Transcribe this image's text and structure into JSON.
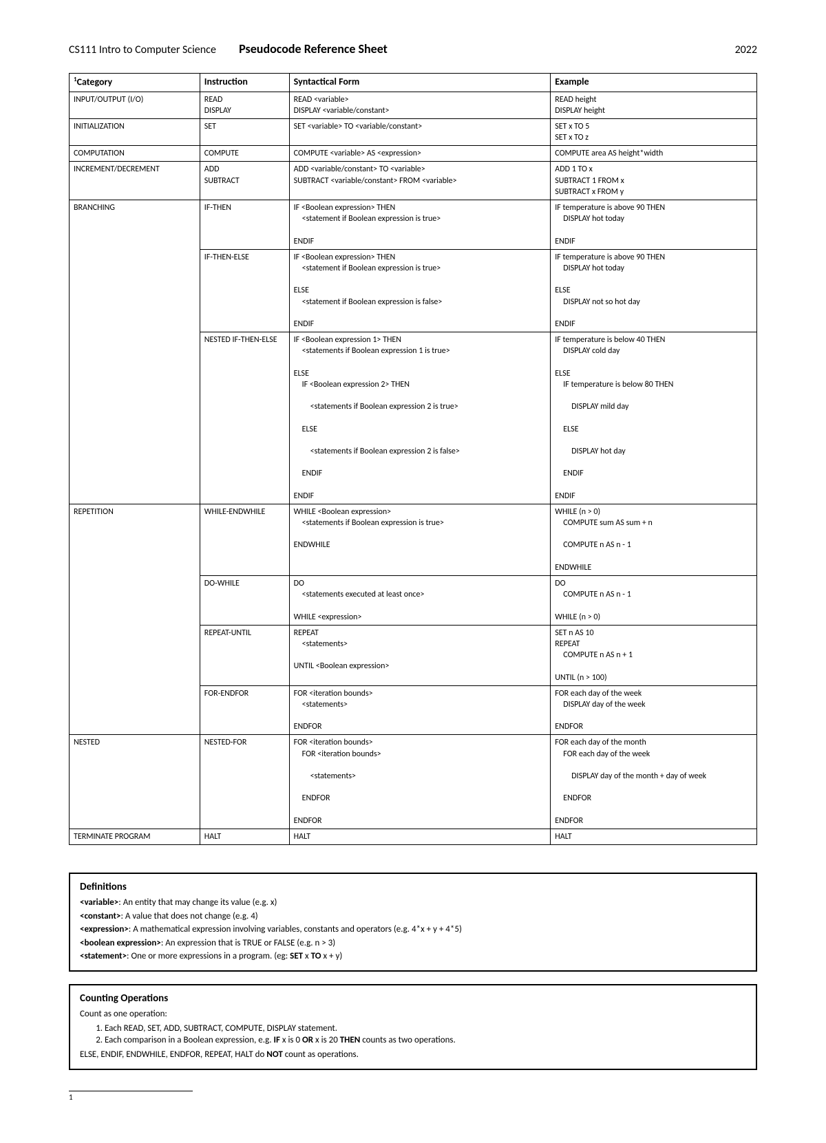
{
  "header": {
    "course": "CS111 Intro to Computer Science",
    "title": "Pseudocode Reference Sheet",
    "year": "2022"
  },
  "table": {
    "columns": [
      "Category",
      "Instruction",
      "Syntactical Form",
      "Example"
    ],
    "footnote_marker": "1",
    "rows": [
      {
        "category": "INPUT/OUTPUT (I/O)",
        "instruction": "READ\nDISPLAY",
        "form": "READ <variable>\nDISPLAY <variable/constant>",
        "example": "READ height\nDISPLAY height"
      },
      {
        "category": "INITIALIZATION",
        "instruction": "SET",
        "form": "SET <variable> TO <variable/constant>",
        "example": "SET x TO 5\nSET x TO z"
      },
      {
        "category": "COMPUTATION",
        "instruction": "COMPUTE",
        "form": "COMPUTE <variable> AS <expression>",
        "example": "COMPUTE area AS height*width"
      },
      {
        "category": "INCREMENT/DECREMENT",
        "instruction": "ADD\nSUBTRACT",
        "form": "ADD <variable/constant> TO <variable>\nSUBTRACT <variable/constant> FROM <variable>",
        "example": "ADD 1 TO x\nSUBTRACT 1 FROM x\nSUBTRACT x FROM y"
      },
      {
        "category": "BRANCHING",
        "category_rowspan": 3,
        "instruction": "IF-THEN",
        "form_lines": [
          {
            "t": "IF <Boolean expression> THEN",
            "i": 0
          },
          {
            "t": "<statement if Boolean expression is true>",
            "i": 1
          },
          {
            "t": "ENDIF",
            "i": 0
          }
        ],
        "example_lines": [
          {
            "t": "IF temperature is above 90 THEN",
            "i": 0
          },
          {
            "t": "DISPLAY hot today",
            "i": 1
          },
          {
            "t": "ENDIF",
            "i": 0
          }
        ]
      },
      {
        "instruction": "IF-THEN-ELSE",
        "form_lines": [
          {
            "t": "IF <Boolean expression> THEN",
            "i": 0
          },
          {
            "t": "<statement if Boolean expression is true>",
            "i": 1
          },
          {
            "t": "ELSE",
            "i": 0
          },
          {
            "t": "<statement if Boolean expression is false>",
            "i": 1
          },
          {
            "t": "ENDIF",
            "i": 0
          }
        ],
        "example_lines": [
          {
            "t": "IF temperature is above 90 THEN",
            "i": 0
          },
          {
            "t": "DISPLAY hot today",
            "i": 1
          },
          {
            "t": "ELSE",
            "i": 0
          },
          {
            "t": "DISPLAY not so hot day",
            "i": 1
          },
          {
            "t": "ENDIF",
            "i": 0
          }
        ]
      },
      {
        "instruction": "NESTED IF-THEN-ELSE",
        "form_lines": [
          {
            "t": "IF <Boolean expression 1> THEN",
            "i": 0
          },
          {
            "t": "<statements if Boolean expression 1 is true>",
            "i": 1
          },
          {
            "t": "ELSE",
            "i": 0
          },
          {
            "t": "IF <Boolean expression 2> THEN",
            "i": 1
          },
          {
            "t": "<statements if Boolean expression 2 is true>",
            "i": 2
          },
          {
            "t": "ELSE",
            "i": 1
          },
          {
            "t": "<statements if Boolean expression 2 is false>",
            "i": 2
          },
          {
            "t": "ENDIF",
            "i": 1
          },
          {
            "t": "ENDIF",
            "i": 0
          }
        ],
        "example_lines": [
          {
            "t": "IF temperature is below 40 THEN",
            "i": 0
          },
          {
            "t": "DISPLAY cold day",
            "i": 1
          },
          {
            "t": "ELSE",
            "i": 0
          },
          {
            "t": "IF temperature is below 80 THEN",
            "i": 1
          },
          {
            "t": "DISPLAY mild day",
            "i": 2
          },
          {
            "t": "ELSE",
            "i": 1
          },
          {
            "t": "DISPLAY hot day",
            "i": 2
          },
          {
            "t": "ENDIF",
            "i": 1
          },
          {
            "t": "ENDIF",
            "i": 0
          }
        ]
      },
      {
        "category": "REPETITION",
        "category_rowspan": 4,
        "instruction": "WHILE-ENDWHILE",
        "form_lines": [
          {
            "t": "WHILE <Boolean expression>",
            "i": 0
          },
          {
            "t": "<statements if Boolean expression is true>",
            "i": 1
          },
          {
            "t": "ENDWHILE",
            "i": 0
          }
        ],
        "example_lines": [
          {
            "t": "WHILE (n > 0)",
            "i": 0
          },
          {
            "t": "COMPUTE sum AS sum + n",
            "i": 1
          },
          {
            "t": "COMPUTE n AS n - 1",
            "i": 1
          },
          {
            "t": "ENDWHILE",
            "i": 0
          }
        ]
      },
      {
        "instruction": "DO-WHILE",
        "form_lines": [
          {
            "t": "DO",
            "i": 0
          },
          {
            "t": "<statements executed at least once>",
            "i": 1
          },
          {
            "t": "WHILE <expression>",
            "i": 0
          }
        ],
        "example_lines": [
          {
            "t": "DO",
            "i": 0
          },
          {
            "t": "COMPUTE n AS n - 1",
            "i": 1
          },
          {
            "t": "WHILE (n > 0)",
            "i": 0
          }
        ]
      },
      {
        "instruction": "REPEAT-UNTIL",
        "form_lines": [
          {
            "t": "REPEAT",
            "i": 0
          },
          {
            "t": "<statements>",
            "i": 1
          },
          {
            "t": "UNTIL <Boolean expression>",
            "i": 0
          }
        ],
        "example_lines": [
          {
            "t": "SET n AS 10",
            "i": 0
          },
          {
            "t": "REPEAT",
            "i": 0
          },
          {
            "t": "COMPUTE n AS n + 1",
            "i": 1
          },
          {
            "t": "UNTIL (n > 100)",
            "i": 0
          }
        ]
      },
      {
        "instruction": "FOR-ENDFOR",
        "form_lines": [
          {
            "t": "FOR <iteration bounds>",
            "i": 0
          },
          {
            "t": "<statements>",
            "i": 1
          },
          {
            "t": "ENDFOR",
            "i": 0
          }
        ],
        "example_lines": [
          {
            "t": "FOR each day of the week",
            "i": 0
          },
          {
            "t": "DISPLAY day of the week",
            "i": 1
          },
          {
            "t": "ENDFOR",
            "i": 0
          }
        ]
      },
      {
        "category": "NESTED",
        "instruction": "NESTED-FOR",
        "form_lines": [
          {
            "t": "FOR <iteration bounds>",
            "i": 0
          },
          {
            "t": "FOR <iteration bounds>",
            "i": 1
          },
          {
            "t": "<statements>",
            "i": 2
          },
          {
            "t": "ENDFOR",
            "i": 1
          },
          {
            "t": "ENDFOR",
            "i": 0
          }
        ],
        "example_lines": [
          {
            "t": "FOR each day of the month",
            "i": 0
          },
          {
            "t": "FOR each day of the week",
            "i": 1
          },
          {
            "t": "DISPLAY day of the month + day of week",
            "i": 2
          },
          {
            "t": "ENDFOR",
            "i": 1
          },
          {
            "t": "ENDFOR",
            "i": 0
          }
        ]
      },
      {
        "category": "TERMINATE PROGRAM",
        "instruction": "HALT",
        "form": "HALT",
        "example": "HALT"
      }
    ]
  },
  "definitions": {
    "title": "Definitions",
    "items": [
      {
        "term": "<variable>",
        "sep": ": ",
        "desc": "An entity that may change its value (e.g. x)"
      },
      {
        "term": "<constant>",
        "sep": ": ",
        "desc": "A value that does not change (e.g. 4)"
      },
      {
        "term": "<expression>",
        "sep": ": ",
        "desc": "A mathematical expression involving variables, constants and operators (e.g. 4*x + y + 4*5)"
      },
      {
        "term": "<boolean expression>",
        "sep": ": ",
        "desc": "An expression that is TRUE or FALSE (e.g.  n > 3)"
      },
      {
        "term": "<statement>",
        "sep": ": ",
        "desc": "One or more expressions in a program. (eg: <b>SET</b> x <b>TO</b> x + y)"
      }
    ]
  },
  "counting": {
    "title": "Counting Operations",
    "intro": "Count as one operation:",
    "list": [
      "Each READ, SET, ADD, SUBTRACT, COMPUTE, DISPLAY statement.",
      "Each comparison in a Boolean expression, e.g. <b>IF</b> x is 0 <b>OR</b> x is 20 <b>THEN</b> counts as two operations."
    ],
    "footer": "ELSE, ENDIF, ENDWHILE, ENDFOR, REPEAT, HALT do <b>NOT</b> count as operations."
  },
  "footnote": "1"
}
